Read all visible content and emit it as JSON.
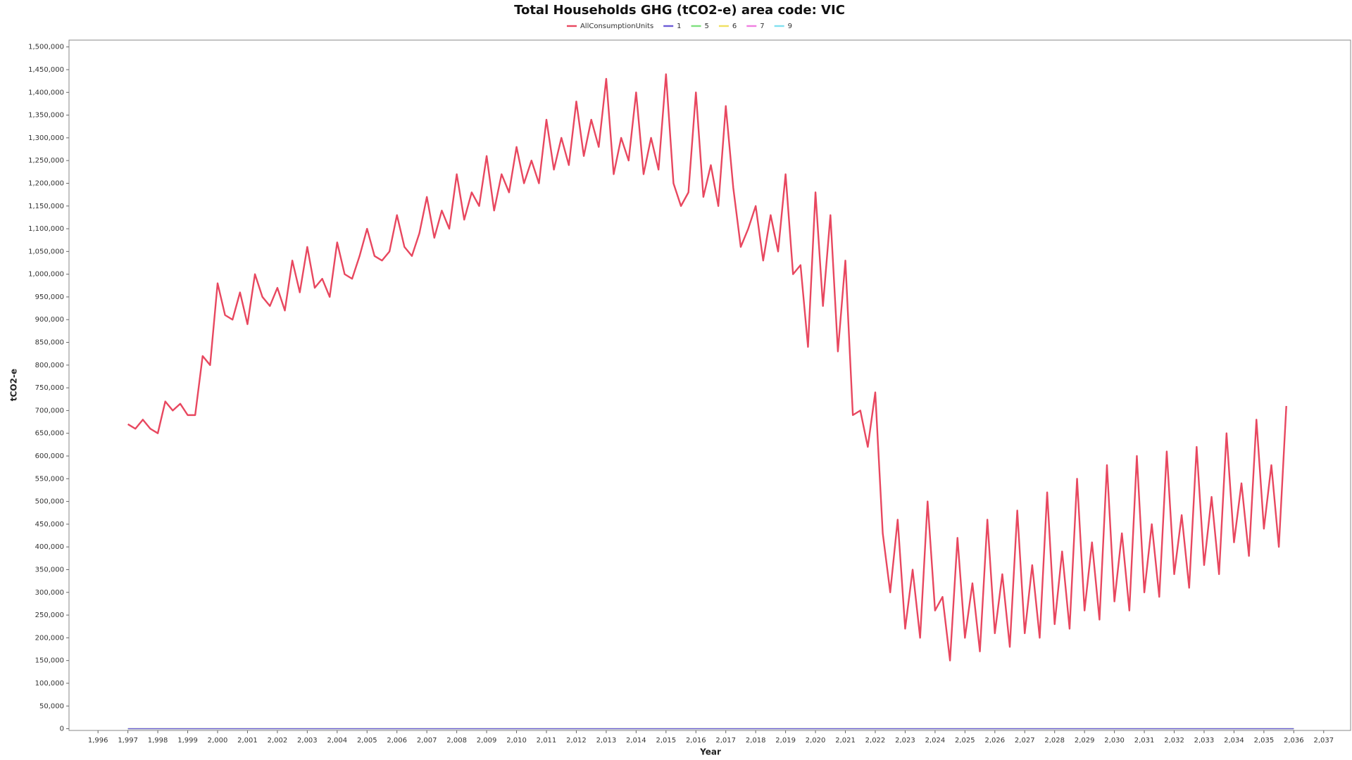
{
  "chart_data": {
    "type": "line",
    "title": "Total Households GHG (tCO2-e) area code: VIC",
    "x_label": "Year",
    "y_label": "tCO2-e",
    "xlim": [
      1995.03,
      2037.9
    ],
    "ylim": [
      -3800,
      1515000
    ],
    "xticks": [
      {
        "value": 1996,
        "label": "1,996"
      },
      {
        "value": 1997,
        "label": "1,997"
      },
      {
        "value": 1998,
        "label": "1,998"
      },
      {
        "value": 1999,
        "label": "1,999"
      },
      {
        "value": 2000,
        "label": "2,000"
      },
      {
        "value": 2001,
        "label": "2,001"
      },
      {
        "value": 2002,
        "label": "2,002"
      },
      {
        "value": 2003,
        "label": "2,003"
      },
      {
        "value": 2004,
        "label": "2,004"
      },
      {
        "value": 2005,
        "label": "2,005"
      },
      {
        "value": 2006,
        "label": "2,006"
      },
      {
        "value": 2007,
        "label": "2,007"
      },
      {
        "value": 2008,
        "label": "2,008"
      },
      {
        "value": 2009,
        "label": "2,009"
      },
      {
        "value": 2010,
        "label": "2,010"
      },
      {
        "value": 2011,
        "label": "2,011"
      },
      {
        "value": 2012,
        "label": "2,012"
      },
      {
        "value": 2013,
        "label": "2,013"
      },
      {
        "value": 2014,
        "label": "2,014"
      },
      {
        "value": 2015,
        "label": "2,015"
      },
      {
        "value": 2016,
        "label": "2,016"
      },
      {
        "value": 2017,
        "label": "2,017"
      },
      {
        "value": 2018,
        "label": "2,018"
      },
      {
        "value": 2019,
        "label": "2,019"
      },
      {
        "value": 2020,
        "label": "2,020"
      },
      {
        "value": 2021,
        "label": "2,021"
      },
      {
        "value": 2022,
        "label": "2,022"
      },
      {
        "value": 2023,
        "label": "2,023"
      },
      {
        "value": 2024,
        "label": "2,024"
      },
      {
        "value": 2025,
        "label": "2,025"
      },
      {
        "value": 2026,
        "label": "2,026"
      },
      {
        "value": 2027,
        "label": "2,027"
      },
      {
        "value": 2028,
        "label": "2,028"
      },
      {
        "value": 2029,
        "label": "2,029"
      },
      {
        "value": 2030,
        "label": "2,030"
      },
      {
        "value": 2031,
        "label": "2,031"
      },
      {
        "value": 2032,
        "label": "2,032"
      },
      {
        "value": 2033,
        "label": "2,033"
      },
      {
        "value": 2034,
        "label": "2,034"
      },
      {
        "value": 2035,
        "label": "2,035"
      },
      {
        "value": 2036,
        "label": "2,036"
      },
      {
        "value": 2037,
        "label": "2,037"
      }
    ],
    "yticks": [
      0,
      {
        "value": 50000,
        "label": "50,000"
      },
      {
        "value": 100000,
        "label": "100,000"
      },
      {
        "value": 150000,
        "label": "150,000"
      },
      {
        "value": 200000,
        "label": "200,000"
      },
      {
        "value": 250000,
        "label": "250,000"
      },
      {
        "value": 300000,
        "label": "300,000"
      },
      {
        "value": 350000,
        "label": "350,000"
      },
      {
        "value": 400000,
        "label": "400,000"
      },
      {
        "value": 450000,
        "label": "450,000"
      },
      {
        "value": 500000,
        "label": "500,000"
      },
      {
        "value": 550000,
        "label": "550,000"
      },
      {
        "value": 600000,
        "label": "600,000"
      },
      {
        "value": 650000,
        "label": "650,000"
      },
      {
        "value": 700000,
        "label": "700,000"
      },
      {
        "value": 750000,
        "label": "750,000"
      },
      {
        "value": 800000,
        "label": "800,000"
      },
      {
        "value": 850000,
        "label": "850,000"
      },
      {
        "value": 900000,
        "label": "900,000"
      },
      {
        "value": 950000,
        "label": "950,000"
      },
      {
        "value": 1000000,
        "label": "1,000,000"
      },
      {
        "value": 1050000,
        "label": "1,050,000"
      },
      {
        "value": 1100000,
        "label": "1,100,000"
      },
      {
        "value": 1150000,
        "label": "1,150,000"
      },
      {
        "value": 1200000,
        "label": "1,200,000"
      },
      {
        "value": 1250000,
        "label": "1,250,000"
      },
      {
        "value": 1300000,
        "label": "1,300,000"
      },
      {
        "value": 1350000,
        "label": "1,350,000"
      },
      {
        "value": 1400000,
        "label": "1,400,000"
      },
      {
        "value": 1450000,
        "label": "1,450,000"
      },
      {
        "value": 1500000,
        "label": "1,500,000"
      }
    ],
    "series": [
      {
        "name": "AllConsumptionUnits",
        "color": "#e8475f",
        "x": [
          1997,
          1997.25,
          1997.5,
          1997.75,
          1998,
          1998.25,
          1998.5,
          1998.75,
          1999,
          1999.25,
          1999.5,
          1999.75,
          2000,
          2000.25,
          2000.5,
          2000.75,
          2001,
          2001.25,
          2001.5,
          2001.75,
          2002,
          2002.25,
          2002.5,
          2002.75,
          2003,
          2003.25,
          2003.5,
          2003.75,
          2004,
          2004.25,
          2004.5,
          2004.75,
          2005,
          2005.25,
          2005.5,
          2005.75,
          2006,
          2006.25,
          2006.5,
          2006.75,
          2007,
          2007.25,
          2007.5,
          2007.75,
          2008,
          2008.25,
          2008.5,
          2008.75,
          2009,
          2009.25,
          2009.5,
          2009.75,
          2010,
          2010.25,
          2010.5,
          2010.75,
          2011,
          2011.25,
          2011.5,
          2011.75,
          2012,
          2012.25,
          2012.5,
          2012.75,
          2013,
          2013.25,
          2013.5,
          2013.75,
          2014,
          2014.25,
          2014.5,
          2014.75,
          2015,
          2015.25,
          2015.5,
          2015.75,
          2016,
          2016.25,
          2016.5,
          2016.75,
          2017,
          2017.25,
          2017.5,
          2017.75,
          2018,
          2018.25,
          2018.5,
          2018.75,
          2019,
          2019.25,
          2019.5,
          2019.75,
          2020,
          2020.25,
          2020.5,
          2020.75,
          2021,
          2021.25,
          2021.5,
          2021.75,
          2022,
          2022.25,
          2022.5,
          2022.75,
          2023,
          2023.25,
          2023.5,
          2023.75,
          2024,
          2024.25,
          2024.5,
          2024.75,
          2025,
          2025.25,
          2025.5,
          2025.75,
          2026,
          2026.25,
          2026.5,
          2026.75,
          2027,
          2027.25,
          2027.5,
          2027.75,
          2028,
          2028.25,
          2028.5,
          2028.75,
          2029,
          2029.25,
          2029.5,
          2029.75,
          2030,
          2030.25,
          2030.5,
          2030.75,
          2031,
          2031.25,
          2031.5,
          2031.75,
          2032,
          2032.25,
          2032.5,
          2032.75,
          2033,
          2033.25,
          2033.5,
          2033.75,
          2034,
          2034.25,
          2034.5,
          2034.75,
          2035,
          2035.25,
          2035.5,
          2035.75
        ],
        "values": [
          670000,
          660000,
          680000,
          660000,
          650000,
          720000,
          700000,
          715000,
          690000,
          690000,
          820000,
          800000,
          980000,
          910000,
          900000,
          960000,
          890000,
          1000000,
          950000,
          930000,
          970000,
          920000,
          1030000,
          960000,
          1060000,
          970000,
          990000,
          950000,
          1070000,
          1000000,
          990000,
          1040000,
          1100000,
          1040000,
          1030000,
          1050000,
          1130000,
          1060000,
          1040000,
          1090000,
          1170000,
          1080000,
          1140000,
          1100000,
          1220000,
          1120000,
          1180000,
          1150000,
          1260000,
          1140000,
          1220000,
          1180000,
          1280000,
          1200000,
          1250000,
          1200000,
          1340000,
          1230000,
          1300000,
          1240000,
          1380000,
          1260000,
          1340000,
          1280000,
          1430000,
          1220000,
          1300000,
          1250000,
          1400000,
          1220000,
          1300000,
          1230000,
          1440000,
          1200000,
          1150000,
          1180000,
          1400000,
          1170000,
          1240000,
          1150000,
          1370000,
          1190000,
          1060000,
          1100000,
          1150000,
          1030000,
          1130000,
          1050000,
          1220000,
          1000000,
          1020000,
          840000,
          1180000,
          930000,
          1130000,
          830000,
          1030000,
          690000,
          700000,
          620000,
          740000,
          430000,
          300000,
          460000,
          220000,
          350000,
          200000,
          500000,
          260000,
          290000,
          150000,
          420000,
          200000,
          320000,
          170000,
          460000,
          210000,
          340000,
          180000,
          480000,
          210000,
          360000,
          200000,
          520000,
          230000,
          390000,
          220000,
          550000,
          260000,
          410000,
          240000,
          580000,
          280000,
          430000,
          260000,
          600000,
          300000,
          450000,
          290000,
          610000,
          340000,
          470000,
          310000,
          620000,
          360000,
          510000,
          340000,
          650000,
          410000,
          540000,
          380000,
          680000,
          440000,
          580000,
          400000,
          710000
        ]
      },
      {
        "name": "1",
        "color": "#6b5bd6",
        "x": [
          1997,
          2036
        ],
        "values": [
          0,
          0
        ]
      },
      {
        "name": "5",
        "color": "#7ee07e",
        "x": [
          1997,
          2036
        ],
        "values": [
          0,
          0
        ]
      },
      {
        "name": "6",
        "color": "#f0e060",
        "x": [
          1997,
          2036
        ],
        "values": [
          0,
          0
        ]
      },
      {
        "name": "7",
        "color": "#f07ee0",
        "x": [
          1997,
          2036
        ],
        "values": [
          0,
          0
        ]
      },
      {
        "name": "9",
        "color": "#80e0f0",
        "x": [
          1997,
          2036
        ],
        "values": [
          0,
          0
        ]
      }
    ]
  }
}
